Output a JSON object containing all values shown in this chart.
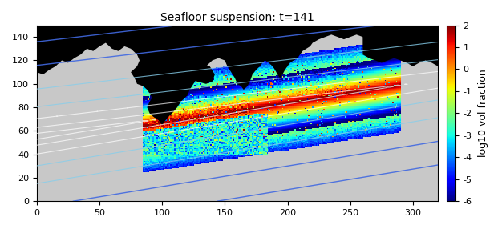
{
  "title": "Seafloor suspension: t=141",
  "colorbar_label": "log10 vol fraction",
  "vmin": -6,
  "vmax": 2,
  "xlim": [
    0,
    320
  ],
  "ylim": [
    0,
    150
  ],
  "xticks": [
    0,
    50,
    100,
    150,
    200,
    250,
    300
  ],
  "yticks": [
    0,
    20,
    40,
    60,
    80,
    100,
    120,
    140
  ],
  "bg_color": "#c8c8c8",
  "land_color": "#000000",
  "fig_width": 6.26,
  "fig_height": 2.86,
  "dpi": 100
}
